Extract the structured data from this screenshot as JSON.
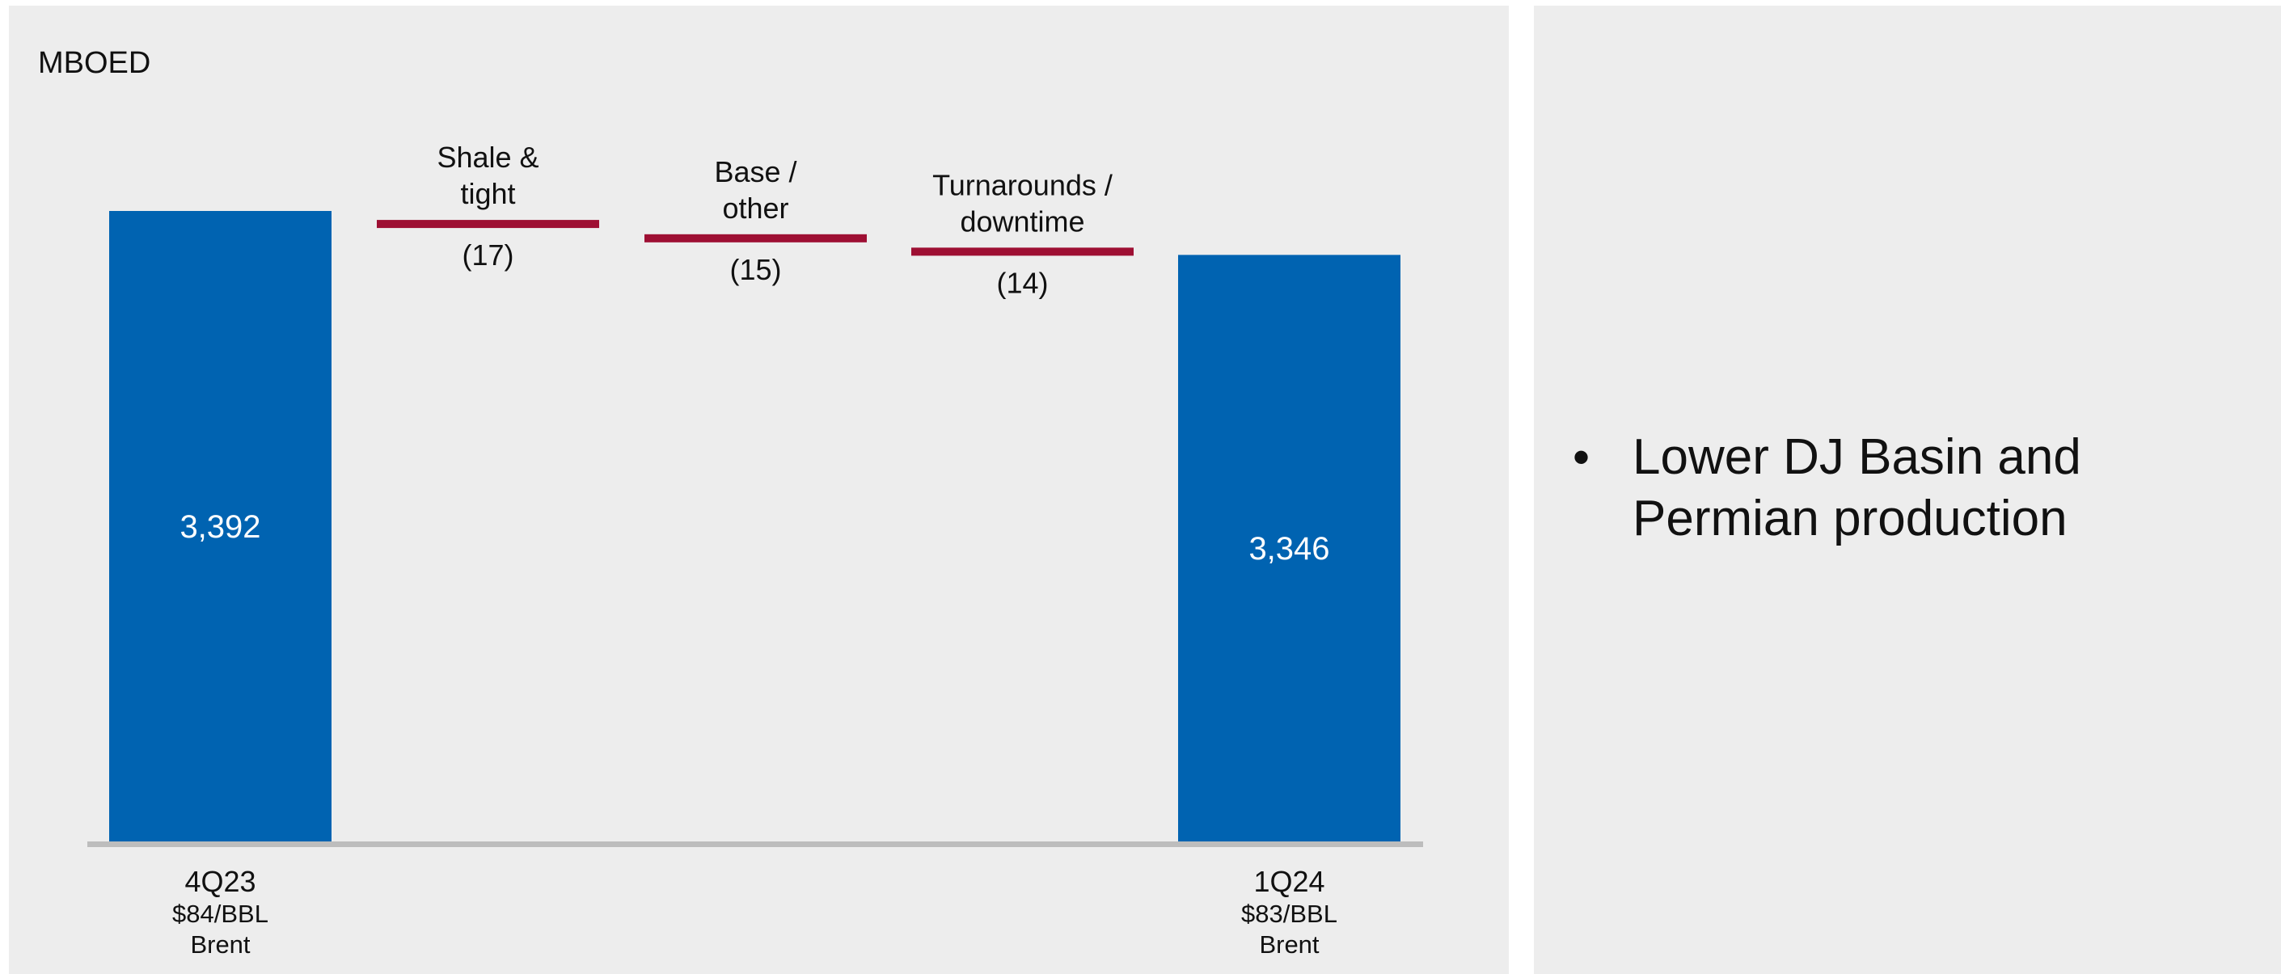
{
  "colors": {
    "total_bar": "#0063b1",
    "decrement": "#9e0f33",
    "baseline": "#bdbdbd",
    "background": "#ededed"
  },
  "chart_data": {
    "type": "waterfall",
    "unit_label": "MBOED",
    "ylim": [
      0,
      3392
    ],
    "grid": false,
    "bars": [
      {
        "kind": "total",
        "value": 3392,
        "label": "3,392",
        "category": [
          "4Q23",
          "$84/BBL",
          "Brent"
        ]
      },
      {
        "kind": "change",
        "value": -17,
        "label": "(17)",
        "name": [
          "Shale &",
          "tight"
        ]
      },
      {
        "kind": "change",
        "value": -15,
        "label": "(15)",
        "name": [
          "Base /",
          "other"
        ]
      },
      {
        "kind": "change",
        "value": -14,
        "label": "(14)",
        "name": [
          "Turnarounds /",
          "downtime"
        ]
      },
      {
        "kind": "total",
        "value": 3346,
        "label": "3,346",
        "category": [
          "1Q24",
          "$83/BBL",
          "Brent"
        ]
      }
    ]
  },
  "commentary": {
    "bullets": [
      {
        "symbol": "•",
        "text": "Lower DJ Basin and Permian production"
      }
    ]
  }
}
